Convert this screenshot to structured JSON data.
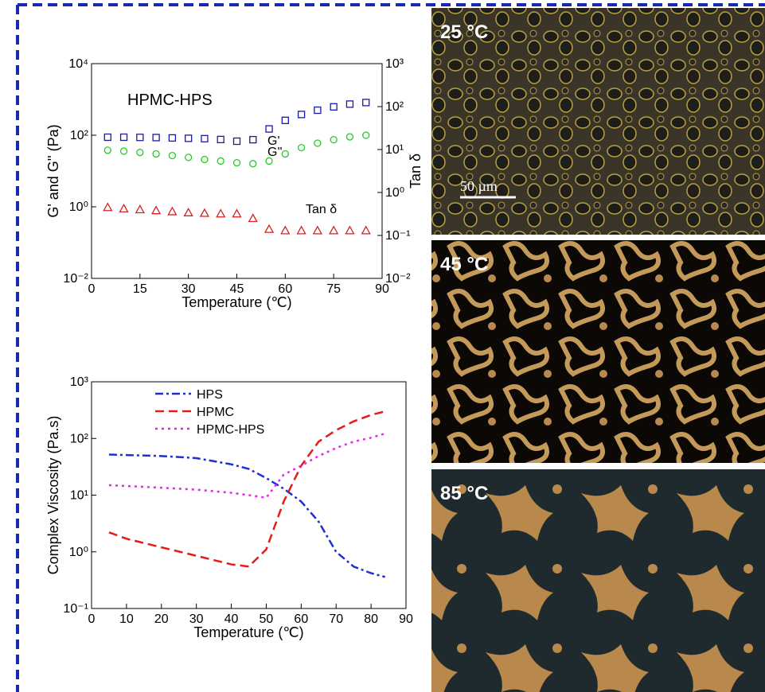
{
  "chart_data": [
    {
      "type": "scatter",
      "x_label": "Temperature (℃)",
      "y_label": "G' and G'' (Pa)",
      "y2_label": "Tan δ",
      "annotations": [
        "HPMC-HPS",
        "G'",
        "G''",
        "Tan δ"
      ],
      "xlim": [
        0,
        90
      ],
      "xticks": [
        0,
        15,
        30,
        45,
        60,
        75,
        90
      ],
      "ylim": [
        0.01,
        10000
      ],
      "log_y": true,
      "yticks": [
        {
          "value": 0.01,
          "label": "10⁻²"
        },
        {
          "value": 1,
          "label": "10⁰"
        },
        {
          "value": 100,
          "label": "10²"
        },
        {
          "value": 10000,
          "label": "10⁴"
        }
      ],
      "y2lim": [
        0.01,
        1000
      ],
      "y2ticks": [
        {
          "value": 0.01,
          "label": "10⁻²"
        },
        {
          "value": 0.1,
          "label": "10⁻¹"
        },
        {
          "value": 1,
          "label": "10⁰"
        },
        {
          "value": 10,
          "label": "10¹"
        },
        {
          "value": 100,
          "label": "10²"
        },
        {
          "value": 1000,
          "label": "10³"
        }
      ],
      "x": [
        5,
        10,
        15,
        20,
        25,
        30,
        35,
        40,
        45,
        50,
        55,
        60,
        65,
        70,
        75,
        80,
        85
      ],
      "series": [
        {
          "name": "G'",
          "color": "#1a1aa8",
          "marker": "square",
          "values": [
            88,
            88,
            87,
            86,
            84,
            82,
            80,
            76,
            68,
            75,
            150,
            260,
            380,
            500,
            620,
            740,
            820
          ]
        },
        {
          "name": "G''",
          "color": "#22cc22",
          "marker": "circle",
          "values": [
            38,
            36,
            33,
            30,
            27,
            24,
            21,
            19,
            17,
            16,
            19,
            30,
            45,
            60,
            75,
            90,
            100
          ]
        },
        {
          "name": "Tan δ",
          "color": "#d42020",
          "marker": "triangle",
          "axis": "y2",
          "values": [
            0.45,
            0.42,
            0.4,
            0.38,
            0.36,
            0.34,
            0.33,
            0.32,
            0.32,
            0.25,
            0.14,
            0.13,
            0.13,
            0.13,
            0.13,
            0.13,
            0.13
          ]
        }
      ]
    },
    {
      "type": "line",
      "x_label": "Temperature (℃)",
      "y_label": "Complex Viscosity (Pa.s)",
      "xlim": [
        0,
        90
      ],
      "xticks": [
        0,
        10,
        20,
        30,
        40,
        50,
        60,
        70,
        80,
        90
      ],
      "ylim": [
        0.1,
        1000
      ],
      "log_y": true,
      "yticks": [
        {
          "value": 0.1,
          "label": "10⁻¹"
        },
        {
          "value": 1,
          "label": "10⁰"
        },
        {
          "value": 10,
          "label": "10¹"
        },
        {
          "value": 100,
          "label": "10²"
        },
        {
          "value": 1000,
          "label": "10³"
        }
      ],
      "legend": "upper left",
      "x": [
        5,
        10,
        20,
        30,
        40,
        45,
        50,
        55,
        60,
        65,
        70,
        75,
        80,
        84
      ],
      "series": [
        {
          "name": "HPS",
          "color": "#1f2fd0",
          "line_style": "dashdot",
          "values": [
            52,
            51,
            49,
            45,
            35,
            29,
            20,
            13,
            7.7,
            3.4,
            1.0,
            0.55,
            0.42,
            0.36
          ]
        },
        {
          "name": "HPMC",
          "color": "#e51a1a",
          "line_style": "dashed",
          "values": [
            2.2,
            1.7,
            1.2,
            0.85,
            0.6,
            0.55,
            1.1,
            7.7,
            33,
            88,
            140,
            200,
            260,
            300
          ]
        },
        {
          "name": "HPMC-HPS",
          "color": "#ee22ee",
          "line_style": "dotted",
          "values": [
            15,
            14.5,
            13.5,
            12.5,
            11,
            10,
            9,
            23,
            33,
            49,
            68,
            88,
            103,
            122
          ]
        }
      ]
    }
  ],
  "micrographs": {
    "labels": [
      "25 °C",
      "45 °C",
      "85 °C"
    ],
    "scale_bar": "50 µm"
  }
}
